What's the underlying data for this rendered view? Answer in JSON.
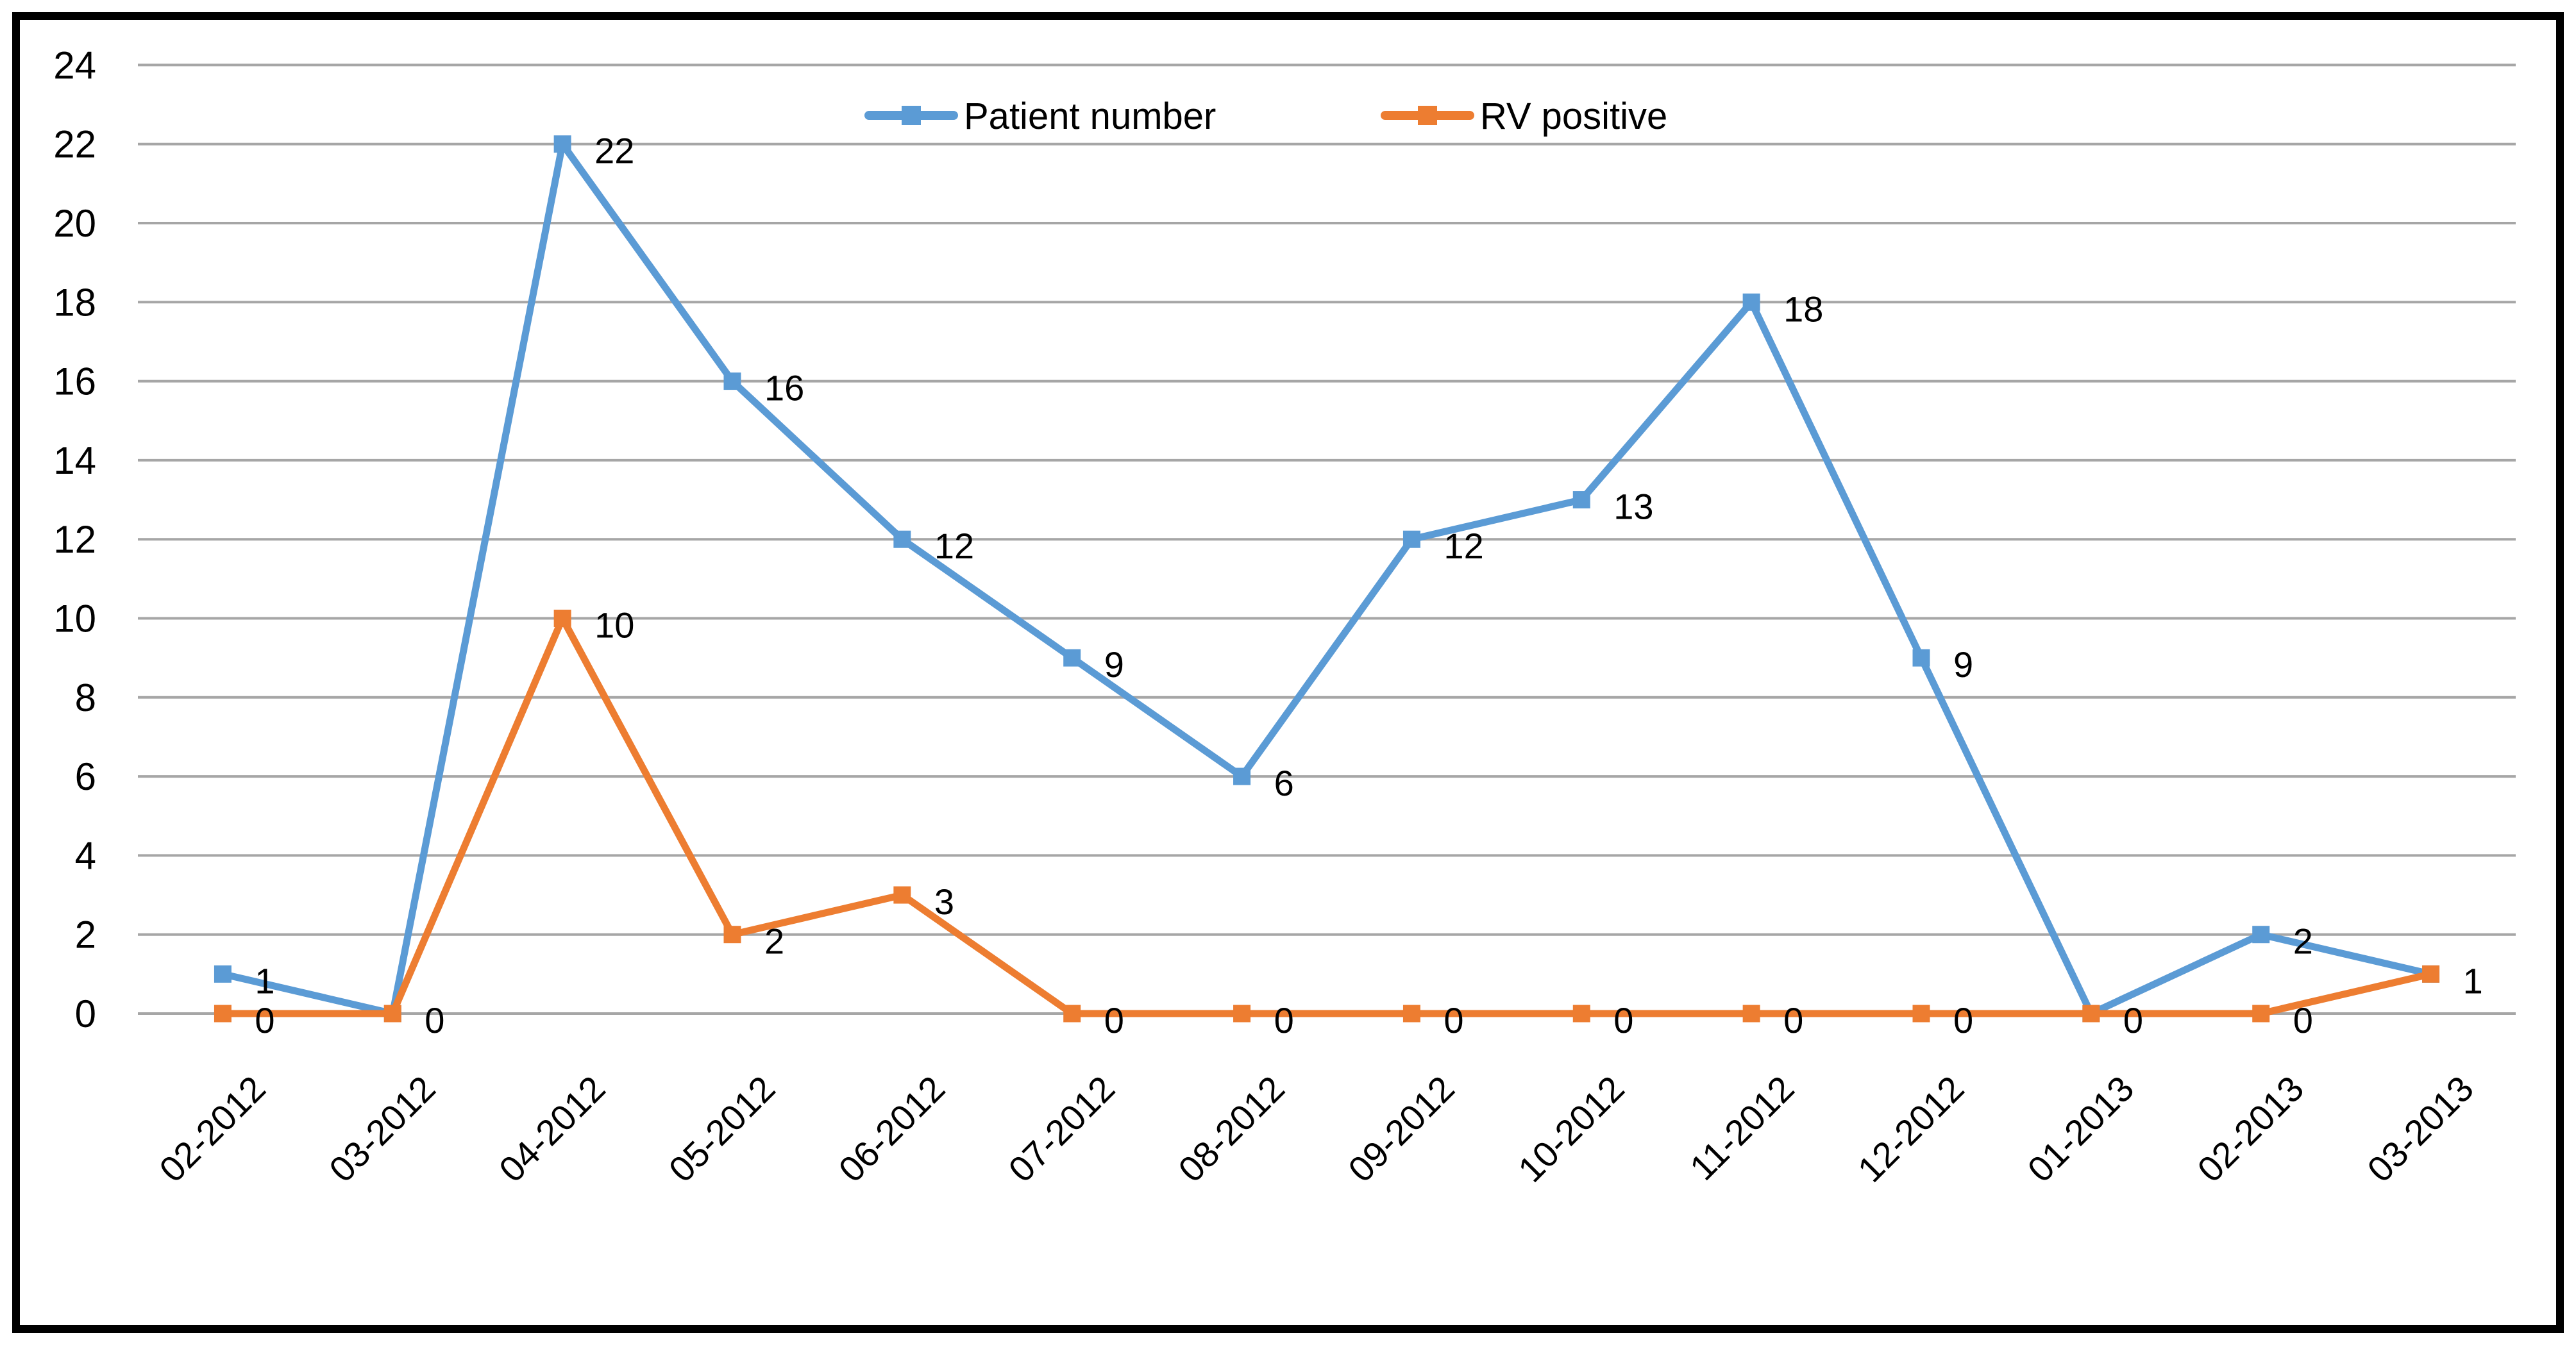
{
  "frame": {
    "background_color": "#ffffff",
    "border_color": "#000000"
  },
  "chart_data": {
    "type": "line",
    "title": "",
    "xlabel": "",
    "ylabel": "",
    "categories": [
      "02-2012",
      "03-2012",
      "04-2012",
      "05-2012",
      "06-2012",
      "07-2012",
      "08-2012",
      "09-2012",
      "10-2012",
      "11-2012",
      "12-2012",
      "01-2013",
      "02-2013",
      "03-2013"
    ],
    "series": [
      {
        "name": "Patient number",
        "color": "#5B9BD5",
        "marker": "square",
        "values": [
          1,
          0,
          22,
          16,
          12,
          9,
          6,
          12,
          13,
          18,
          9,
          0,
          2,
          1
        ],
        "labels": [
          "1",
          "0",
          "22",
          "16",
          "12",
          "9",
          "6",
          "12",
          "13",
          "18",
          "9",
          "0",
          "2",
          "1"
        ]
      },
      {
        "name": "RV positive",
        "color": "#ED7D31",
        "marker": "square",
        "values": [
          0,
          0,
          10,
          2,
          3,
          0,
          0,
          0,
          0,
          0,
          0,
          0,
          0,
          1
        ],
        "labels": [
          "0",
          null,
          "10",
          "2",
          "3",
          "0",
          "0",
          "0",
          "0",
          "0",
          "0",
          null,
          "0",
          null
        ]
      }
    ],
    "ylim": [
      0,
      24
    ],
    "ytick_step": 2,
    "yticks": [
      "0",
      "2",
      "4",
      "6",
      "8",
      "10",
      "12",
      "14",
      "16",
      "18",
      "20",
      "22",
      "24"
    ],
    "grid": "horizontal",
    "gridline_color": "#A6A6A6",
    "tick_label_color": "#000000",
    "data_label_color": "#000000",
    "legend_position": "top-center",
    "x_label_rotation_deg": -45
  }
}
